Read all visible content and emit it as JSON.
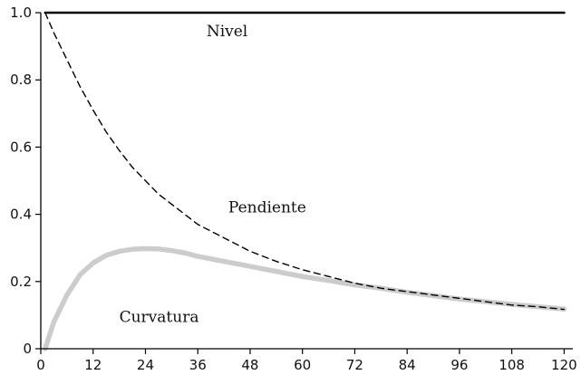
{
  "chart_data": {
    "type": "line",
    "title": "",
    "xlabel": "",
    "ylabel": "",
    "xlim": [
      0,
      122
    ],
    "ylim": [
      0,
      1.0
    ],
    "x_ticks": [
      0,
      12,
      24,
      36,
      48,
      60,
      72,
      84,
      96,
      108,
      120
    ],
    "x_tick_labels": [
      "0",
      "12",
      "24",
      "36",
      "48",
      "60",
      "72",
      "84",
      "96",
      "108",
      "120"
    ],
    "y_ticks": [
      0,
      0.2,
      0.4,
      0.6,
      0.8,
      1.0
    ],
    "y_tick_labels": [
      "0",
      "0.2",
      "0.4",
      "0.6",
      "0.8",
      "1.0"
    ],
    "grid": false,
    "legend": "none",
    "x": [
      1,
      3,
      6,
      9,
      12,
      15,
      18,
      21,
      24,
      27,
      30,
      33,
      36,
      42,
      48,
      54,
      60,
      66,
      72,
      78,
      84,
      90,
      96,
      102,
      108,
      114,
      120
    ],
    "series": [
      {
        "name": "Nivel",
        "style": "solid",
        "color": "#000000",
        "values": [
          1.0,
          1.0,
          1.0,
          1.0,
          1.0,
          1.0,
          1.0,
          1.0,
          1.0,
          1.0,
          1.0,
          1.0,
          1.0,
          1.0,
          1.0,
          1.0,
          1.0,
          1.0,
          1.0,
          1.0,
          1.0,
          1.0,
          1.0,
          1.0,
          1.0,
          1.0,
          1.0
        ]
      },
      {
        "name": "Pendiente",
        "style": "dashed",
        "color": "#000000",
        "values": [
          1.0,
          0.94,
          0.86,
          0.78,
          0.71,
          0.645,
          0.59,
          0.54,
          0.5,
          0.46,
          0.43,
          0.4,
          0.37,
          0.33,
          0.29,
          0.26,
          0.235,
          0.215,
          0.195,
          0.18,
          0.17,
          0.16,
          0.15,
          0.14,
          0.13,
          0.125,
          0.117
        ]
      },
      {
        "name": "Curvatura",
        "style": "solid-thick",
        "color": "#cccccc",
        "values": [
          0.0,
          0.08,
          0.16,
          0.22,
          0.255,
          0.278,
          0.29,
          0.296,
          0.298,
          0.297,
          0.292,
          0.285,
          0.275,
          0.26,
          0.245,
          0.23,
          0.215,
          0.203,
          0.19,
          0.18,
          0.168,
          0.158,
          0.148,
          0.14,
          0.132,
          0.125,
          0.118
        ]
      }
    ],
    "annotations": [
      {
        "text": "Nivel",
        "series": 0,
        "x": 38,
        "y": 0.93
      },
      {
        "text": "Pendiente",
        "series": 1,
        "x": 43,
        "y": 0.405
      },
      {
        "text": "Curvatura",
        "series": 2,
        "x": 18,
        "y": 0.08
      }
    ]
  }
}
